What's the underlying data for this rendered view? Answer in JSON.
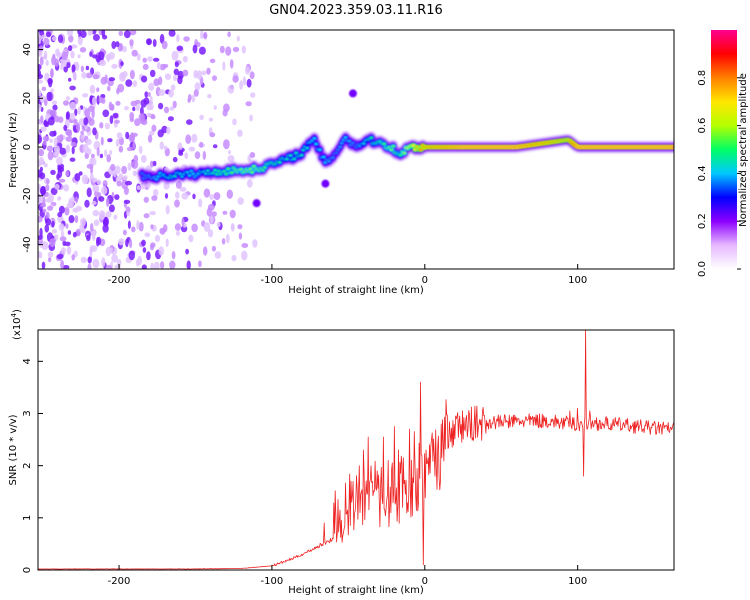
{
  "figure_title": "GN04.2023.359.03.11.R16",
  "chart_data": [
    {
      "type": "heatmap",
      "title": "GN04.2023.359.03.11.R16",
      "xlabel": "Height of straight line (km)",
      "ylabel": "Frequency (Hz)",
      "xlim": [
        -253,
        163
      ],
      "ylim": [
        -50,
        48
      ],
      "xticks": [
        -200,
        -100,
        0,
        100
      ],
      "yticks": [
        -40,
        -20,
        0,
        20,
        40
      ],
      "colorbar": {
        "label": "Normalized spectral amplitude",
        "range": [
          0,
          1
        ],
        "ticks": [
          "0.0",
          "0.2",
          "0.4",
          "0.6",
          "0.8"
        ],
        "colormap": "rainbow (white → violet → blue → cyan → green → yellow → red → magenta)",
        "stops": [
          "#ffffff",
          "#e6b8ff",
          "#8c00ff",
          "#0000ff",
          "#00c8ff",
          "#00ff64",
          "#b4ff00",
          "#ffe600",
          "#ff8000",
          "#ff0000",
          "#ff0090"
        ]
      },
      "ridge": {
        "description": "spectral peak ridge (height km, frequency Hz, normalized amplitude)",
        "points": [
          [
            -185,
            -12,
            0.35
          ],
          [
            -175,
            -12,
            0.4
          ],
          [
            -165,
            -11.5,
            0.45
          ],
          [
            -150,
            -11,
            0.4
          ],
          [
            -135,
            -10,
            0.5
          ],
          [
            -120,
            -9.5,
            0.55
          ],
          [
            -110,
            -9,
            0.55
          ],
          [
            -100,
            -7,
            0.5
          ],
          [
            -90,
            -5,
            0.45
          ],
          [
            -80,
            -2,
            0.45
          ],
          [
            -72,
            3,
            0.4
          ],
          [
            -65,
            -7,
            0.4
          ],
          [
            -58,
            -2,
            0.35
          ],
          [
            -52,
            4,
            0.4
          ],
          [
            -45,
            0,
            0.35
          ],
          [
            -38,
            3,
            0.45
          ],
          [
            -30,
            2,
            0.5
          ],
          [
            -22,
            0,
            0.55
          ],
          [
            -16,
            -3,
            0.5
          ],
          [
            -10,
            0,
            0.65
          ],
          [
            0,
            0,
            0.85
          ],
          [
            25,
            0,
            0.95
          ],
          [
            60,
            0,
            0.95
          ],
          [
            94,
            3,
            0.8
          ],
          [
            100,
            0,
            0.95
          ],
          [
            130,
            0,
            0.95
          ],
          [
            163,
            0,
            0.95
          ]
        ]
      },
      "noise_region_km": [
        -253,
        -110
      ],
      "side_spots": [
        [
          -110,
          -23
        ],
        [
          -65,
          -15
        ],
        [
          -47,
          22
        ]
      ],
      "grid": false
    },
    {
      "type": "line",
      "xlabel": "Height of straight line (km)",
      "ylabel": "SNR (10 * v/v)",
      "y_multiplier": "(x10^4)",
      "xlim": [
        -253,
        163
      ],
      "ylim": [
        0,
        4.6
      ],
      "xticks": [
        -200,
        -100,
        0,
        100
      ],
      "yticks": [
        0,
        1,
        2,
        3,
        4
      ],
      "series": [
        {
          "color": "#ee2222",
          "envelope": [
            [
              -253,
              0.02
            ],
            [
              -200,
              0.02
            ],
            [
              -150,
              0.02
            ],
            [
              -120,
              0.03
            ],
            [
              -100,
              0.08
            ],
            [
              -90,
              0.18
            ],
            [
              -80,
              0.3
            ],
            [
              -70,
              0.45
            ],
            [
              -60,
              0.6
            ],
            [
              -55,
              0.75
            ],
            [
              -50,
              0.9
            ],
            [
              -45,
              1.2
            ],
            [
              -40,
              1.35
            ],
            [
              -35,
              1.3
            ],
            [
              -30,
              1.25
            ],
            [
              -25,
              1.2
            ],
            [
              -20,
              1.3
            ],
            [
              -15,
              1.35
            ],
            [
              -10,
              1.2
            ],
            [
              -5,
              1.7
            ],
            [
              0,
              1.6
            ],
            [
              5,
              2.0
            ],
            [
              10,
              2.2
            ],
            [
              15,
              2.5
            ],
            [
              20,
              2.7
            ],
            [
              30,
              2.8
            ],
            [
              40,
              2.83
            ],
            [
              60,
              2.85
            ],
            [
              75,
              2.86
            ],
            [
              80,
              2.86
            ],
            [
              90,
              2.82
            ],
            [
              100,
              2.8
            ],
            [
              110,
              2.82
            ],
            [
              130,
              2.78
            ],
            [
              150,
              2.72
            ],
            [
              163,
              2.7
            ]
          ],
          "spikes": [
            [
              -66,
              0.9
            ],
            [
              -60,
              0.6
            ],
            [
              -48,
              1.3
            ],
            [
              -43,
              2.0
            ],
            [
              -40,
              2.3
            ],
            [
              -37,
              2.55
            ],
            [
              -35,
              2.0
            ],
            [
              -31,
              1.9
            ],
            [
              -27,
              2.55
            ],
            [
              -24,
              2.1
            ],
            [
              -20,
              2.75
            ],
            [
              -17,
              2.3
            ],
            [
              -14,
              2.15
            ],
            [
              -10,
              2.7
            ],
            [
              -7,
              2.65
            ],
            [
              -3,
              3.6
            ],
            [
              -1,
              0.1
            ],
            [
              1,
              2.3
            ],
            [
              3,
              2.4
            ],
            [
              95,
              3.05
            ],
            [
              100,
              3.1
            ],
            [
              104,
              1.8
            ],
            [
              105,
              4.6
            ],
            [
              108,
              3.05
            ]
          ]
        }
      ],
      "grid": false
    }
  ]
}
